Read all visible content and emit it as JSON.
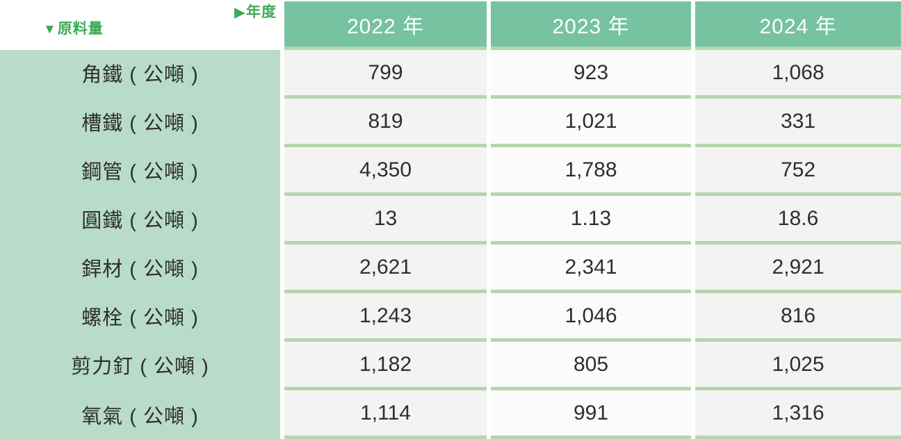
{
  "corner": {
    "year_axis_label": "年度",
    "material_axis_label": "原料量"
  },
  "icons": {
    "year_pointer": "▶",
    "material_pointer": "▼"
  },
  "columns": [
    "2022 年",
    "2023 年",
    "2024 年"
  ],
  "rows": [
    {
      "label": "角鐵 ( 公噸 )",
      "values": [
        "799",
        "923",
        "1,068"
      ]
    },
    {
      "label": "槽鐵 ( 公噸 )",
      "values": [
        "819",
        "1,021",
        "331"
      ]
    },
    {
      "label": "鋼管 ( 公噸 )",
      "values": [
        "4,350",
        "1,788",
        "752"
      ]
    },
    {
      "label": "圓鐵 ( 公噸 )",
      "values": [
        "13",
        "1.13",
        "18.6"
      ]
    },
    {
      "label": "銲材 ( 公噸 )",
      "values": [
        "2,621",
        "2,341",
        "2,921"
      ]
    },
    {
      "label": "螺栓 ( 公噸 )",
      "values": [
        "1,243",
        "1,046",
        "816"
      ]
    },
    {
      "label": "剪力釘 ( 公噸 )",
      "values": [
        "1,182",
        "805",
        "1,025"
      ]
    },
    {
      "label": "氧氣 ( 公噸 )",
      "values": [
        "1,114",
        "991",
        "1,316"
      ]
    }
  ],
  "colors": {
    "header_bg": "#76c2a1",
    "header_text": "#ffffff",
    "label_bg": "#b8dcc9",
    "separator": "#b3d7ab",
    "cell_bg": "#f3f3f4",
    "cell_bg_alt": "#fbfbfc",
    "accent_text": "#3bab55",
    "body_text": "#2e2e2e"
  },
  "chart_data": {
    "type": "table",
    "title": "原料量 / 年度",
    "row_axis_label": "原料量",
    "column_axis_label": "年度",
    "columns": [
      "2022 年",
      "2023 年",
      "2024 年"
    ],
    "unit": "公噸",
    "series": [
      {
        "name": "角鐵",
        "values": [
          799,
          923,
          1068
        ]
      },
      {
        "name": "槽鐵",
        "values": [
          819,
          1021,
          331
        ]
      },
      {
        "name": "鋼管",
        "values": [
          4350,
          1788,
          752
        ]
      },
      {
        "name": "圓鐵",
        "values": [
          13,
          1.13,
          18.6
        ]
      },
      {
        "name": "銲材",
        "values": [
          2621,
          2341,
          2921
        ]
      },
      {
        "name": "螺栓",
        "values": [
          1243,
          1046,
          816
        ]
      },
      {
        "name": "剪力釘",
        "values": [
          1182,
          805,
          1025
        ]
      },
      {
        "name": "氧氣",
        "values": [
          1114,
          991,
          1316
        ]
      }
    ]
  }
}
